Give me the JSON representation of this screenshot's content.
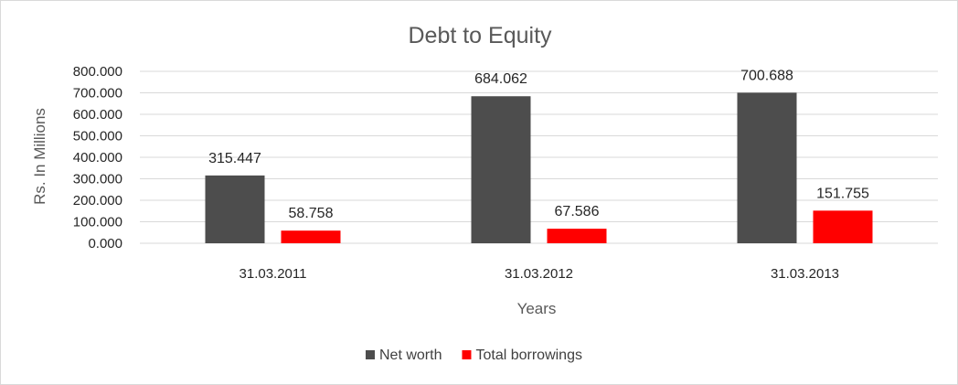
{
  "chart_data": {
    "type": "bar",
    "title": "Debt to Equity",
    "xlabel": "Years",
    "ylabel": "Rs. In Millions",
    "categories": [
      "31.03.2011",
      "31.03.2012",
      "31.03.2013"
    ],
    "series": [
      {
        "name": "Net worth",
        "color": "#4d4d4d",
        "values": [
          315.447,
          684.062,
          700.688
        ],
        "labels": [
          "315.447",
          "684.062",
          "700.688"
        ]
      },
      {
        "name": "Total borrowings",
        "color": "#ff0000",
        "values": [
          58.758,
          67.586,
          151.755
        ],
        "labels": [
          "58.758",
          "67.586",
          "151.755"
        ]
      }
    ],
    "ylim": [
      0,
      800
    ],
    "yticks": [
      "0.000",
      "100.000",
      "200.000",
      "300.000",
      "400.000",
      "500.000",
      "600.000",
      "700.000",
      "800.000"
    ],
    "grid": true,
    "legend": "bottom"
  }
}
